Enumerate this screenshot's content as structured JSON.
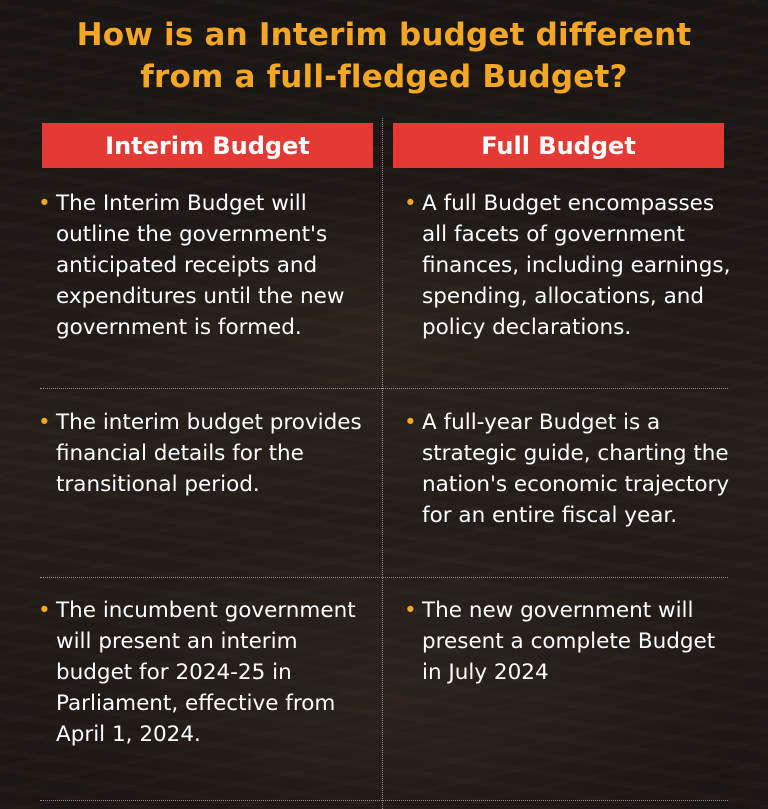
{
  "title": {
    "line1": "How is an Interim budget different",
    "line2": "from a full-fledged Budget?"
  },
  "columns": {
    "left_header": "Interim Budget",
    "right_header": "Full Budget"
  },
  "rows": [
    {
      "left": "The Interim Budget will outline the government's anticipated receipts and expenditures until the new government is formed.",
      "right": "A full Budget encompasses all facets of government finances, including earnings, spending, allocations, and policy declarations."
    },
    {
      "left": "The interim budget provides financial details for the transitional period.",
      "right": "A full-year Budget is a strategic guide, charting the nation's economic trajectory for an entire fiscal year."
    },
    {
      "left": "The incumbent government will present an interim budget for 2024-25 in Parliament, effective from April 1, 2024.",
      "right": "The new government will present a complete Budget in July 2024"
    }
  ],
  "bullet_symbol": "•",
  "colors": {
    "accent": "#f5a623",
    "header_bg": "#e53935",
    "text": "#ffffff"
  }
}
